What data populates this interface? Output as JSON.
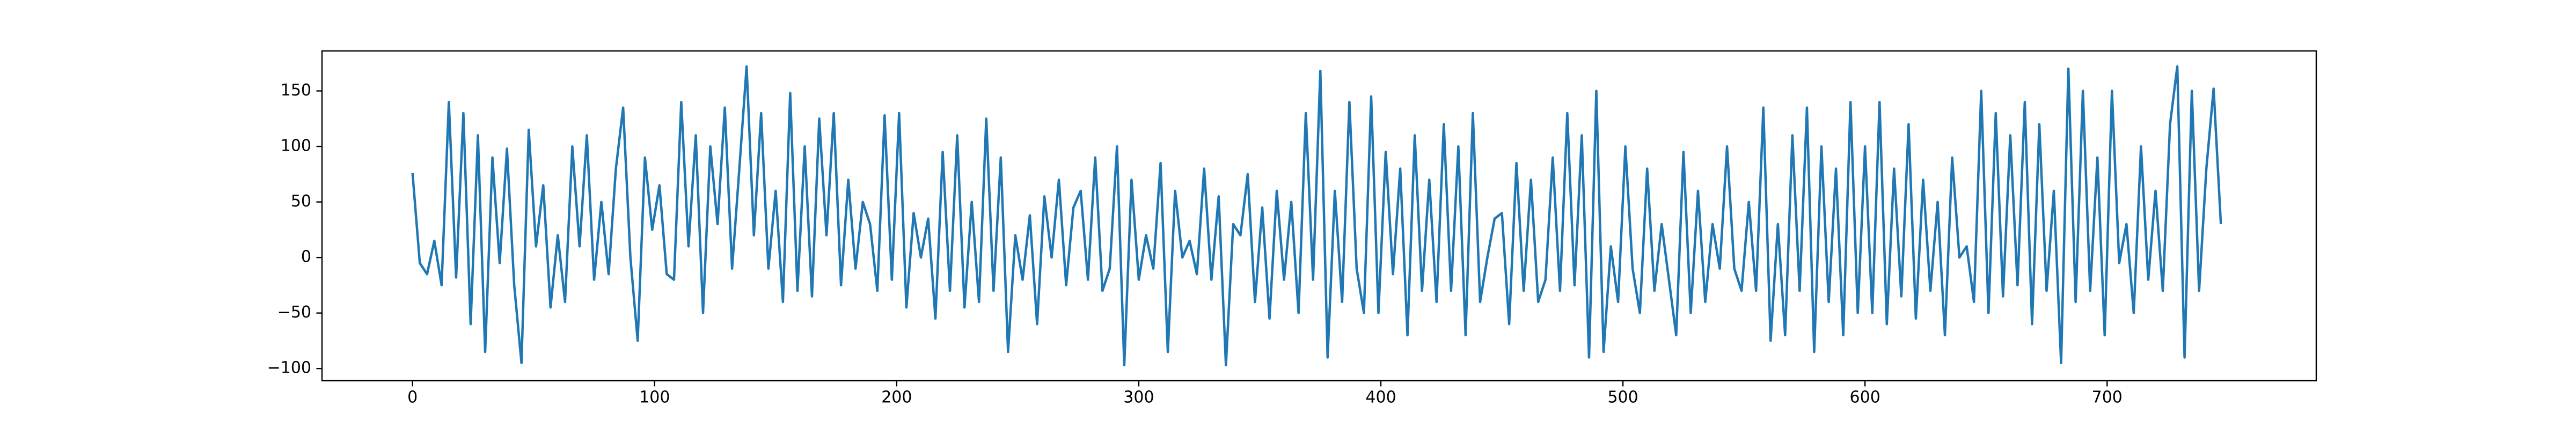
{
  "chart_data": {
    "type": "line",
    "x": [
      0,
      3,
      6,
      9,
      12,
      15,
      18,
      21,
      24,
      27,
      30,
      33,
      36,
      39,
      42,
      45,
      48,
      51,
      54,
      57,
      60,
      63,
      66,
      69,
      72,
      75,
      78,
      81,
      84,
      87,
      90,
      93,
      96,
      99,
      102,
      105,
      108,
      111,
      114,
      117,
      120,
      123,
      126,
      129,
      132,
      135,
      138,
      141,
      144,
      147,
      150,
      153,
      156,
      159,
      162,
      165,
      168,
      171,
      174,
      177,
      180,
      183,
      186,
      189,
      192,
      195,
      198,
      201,
      204,
      207,
      210,
      213,
      216,
      219,
      222,
      225,
      228,
      231,
      234,
      237,
      240,
      243,
      246,
      249,
      252,
      255,
      258,
      261,
      264,
      267,
      270,
      273,
      276,
      279,
      282,
      285,
      288,
      291,
      294,
      297,
      300,
      303,
      306,
      309,
      312,
      315,
      318,
      321,
      324,
      327,
      330,
      333,
      336,
      339,
      342,
      345,
      348,
      351,
      354,
      357,
      360,
      363,
      366,
      369,
      372,
      375,
      378,
      381,
      384,
      387,
      390,
      393,
      396,
      399,
      402,
      405,
      408,
      411,
      414,
      417,
      420,
      423,
      426,
      429,
      432,
      435,
      438,
      441,
      444,
      447,
      450,
      453,
      456,
      459,
      462,
      465,
      468,
      471,
      474,
      477,
      480,
      483,
      486,
      489,
      492,
      495,
      498,
      501,
      504,
      507,
      510,
      513,
      516,
      519,
      522,
      525,
      528,
      531,
      534,
      537,
      540,
      543,
      546,
      549,
      552,
      555,
      558,
      561,
      564,
      567,
      570,
      573,
      576,
      579,
      582,
      585,
      588,
      591,
      594,
      597,
      600,
      603,
      606,
      609,
      612,
      615,
      618,
      621,
      624,
      627,
      630,
      633,
      636,
      639,
      642,
      645,
      648,
      651,
      654,
      657,
      660,
      663,
      666,
      669,
      672,
      675,
      678,
      681,
      684,
      687,
      690,
      693,
      696,
      699,
      702,
      705,
      708,
      711,
      714,
      717,
      720,
      723,
      726,
      729,
      732,
      735,
      738,
      741,
      744,
      747
    ],
    "values": [
      76,
      -5,
      -15,
      15,
      -25,
      140,
      -18,
      130,
      -60,
      110,
      -85,
      90,
      -5,
      98,
      -25,
      -95,
      115,
      10,
      65,
      -45,
      20,
      -40,
      100,
      10,
      110,
      -20,
      50,
      -15,
      80,
      135,
      0,
      -75,
      90,
      25,
      65,
      -15,
      -20,
      140,
      10,
      110,
      -50,
      100,
      30,
      135,
      -10,
      80,
      172,
      20,
      130,
      -10,
      60,
      -40,
      148,
      -30,
      100,
      -35,
      125,
      20,
      130,
      -25,
      70,
      -10,
      50,
      30,
      -30,
      128,
      -20,
      130,
      -45,
      40,
      0,
      35,
      -55,
      95,
      -30,
      110,
      -45,
      50,
      -40,
      125,
      -30,
      90,
      -85,
      20,
      -20,
      38,
      -60,
      55,
      0,
      70,
      -25,
      45,
      60,
      -20,
      90,
      -30,
      -10,
      100,
      -97,
      70,
      -20,
      20,
      -10,
      85,
      -85,
      60,
      0,
      15,
      -15,
      80,
      -20,
      55,
      -97,
      30,
      20,
      75,
      -40,
      45,
      -55,
      60,
      -20,
      50,
      -50,
      130,
      -20,
      168,
      -90,
      60,
      -40,
      140,
      -10,
      -50,
      145,
      -50,
      95,
      -15,
      80,
      -70,
      110,
      -30,
      70,
      -40,
      120,
      -30,
      100,
      -70,
      130,
      -40,
      0,
      35,
      40,
      -60,
      85,
      -30,
      70,
      -40,
      -20,
      90,
      -30,
      130,
      -25,
      110,
      -90,
      150,
      -85,
      10,
      -40,
      100,
      -10,
      -50,
      80,
      -30,
      30,
      -20,
      -70,
      95,
      -50,
      60,
      -40,
      30,
      -10,
      100,
      -10,
      -30,
      50,
      -30,
      135,
      -75,
      30,
      -70,
      110,
      -30,
      135,
      -85,
      100,
      -40,
      80,
      -70,
      140,
      -50,
      100,
      -50,
      140,
      -60,
      80,
      -35,
      120,
      -55,
      70,
      -30,
      50,
      -70,
      90,
      0,
      10,
      -40,
      150,
      -50,
      130,
      -35,
      110,
      -25,
      140,
      -60,
      120,
      -30,
      60,
      -95,
      170,
      -40,
      150,
      -30,
      90,
      -70,
      150,
      -5,
      30,
      -50,
      100,
      -20,
      60,
      -30,
      120,
      172,
      -90,
      150,
      -30,
      80,
      152,
      30
    ],
    "color": "#1f77b4",
    "xlim": [
      -37.4,
      786.4
    ],
    "xticks": [
      0,
      100,
      200,
      300,
      400,
      500,
      600,
      700
    ],
    "ylim": [
      -111,
      186
    ],
    "yticks": [
      {
        "value": -100,
        "label": "−100"
      },
      {
        "value": -50,
        "label": "−50"
      },
      0,
      50,
      100,
      150
    ]
  }
}
